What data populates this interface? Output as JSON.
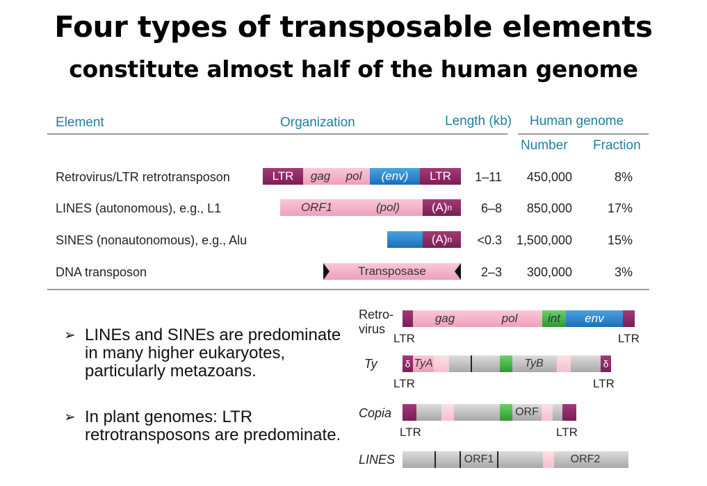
{
  "title": "Four types of transposable elements",
  "subtitle": "constitute almost half of the human genome",
  "table": {
    "headers": {
      "element": "Element",
      "organization": "Organization",
      "length": "Length (kb)",
      "human_genome": "Human genome",
      "number": "Number",
      "fraction": "Fraction"
    },
    "rows": [
      {
        "element": "Retrovirus/LTR retrotransposon",
        "length": "1–11",
        "number": "450,000",
        "fraction": "8%",
        "segments": [
          "LTR",
          "gag",
          "pol",
          "(env)",
          "LTR"
        ]
      },
      {
        "element": "LINES (autonomous), e.g., L1",
        "length": "6–8",
        "number": "850,000",
        "fraction": "17%",
        "segments": [
          "ORF1",
          "(pol)",
          "(A)",
          "n"
        ]
      },
      {
        "element": "SINES (nonautonomous), e.g., Alu",
        "length": "<0.3",
        "number": "1,500,000",
        "fraction": "15%",
        "segments": [
          "(A)",
          "n"
        ]
      },
      {
        "element": "DNA transposon",
        "length": "2–3",
        "number": "300,000",
        "fraction": "3%",
        "segments": [
          "Transposase"
        ]
      }
    ]
  },
  "bullets": [
    "LINEs and SINEs are predominate in many higher eukaryotes, particularly metazoans.",
    "In plant genomes: LTR retrotransposons are predominate."
  ],
  "diagrams": {
    "retrovirus": {
      "label_line1": "Retro-",
      "label_line2": "virus",
      "gag": "gag",
      "pol": "pol",
      "int": "int",
      "env": "env",
      "ltr_left": "LTR",
      "ltr_right": "LTR"
    },
    "ty": {
      "label": "Ty",
      "delta_left": "δ",
      "tya": "TyA",
      "tyb": "TyB",
      "delta_right": "δ",
      "ltr_left": "LTR",
      "ltr_right": "LTR"
    },
    "copia": {
      "label": "Copia",
      "orf": "ORF",
      "ltr_left": "LTR",
      "ltr_right": "LTR"
    },
    "lines": {
      "label": "LINES",
      "orf1": "ORF1",
      "orf2": "ORF2"
    }
  },
  "colors": {
    "header": "#1f7fa0",
    "ltr": "#8b2a63",
    "pink": "#f2a9c1",
    "blue": "#2a86cc",
    "green": "#3db33d",
    "gray": "#bdbdbd"
  }
}
